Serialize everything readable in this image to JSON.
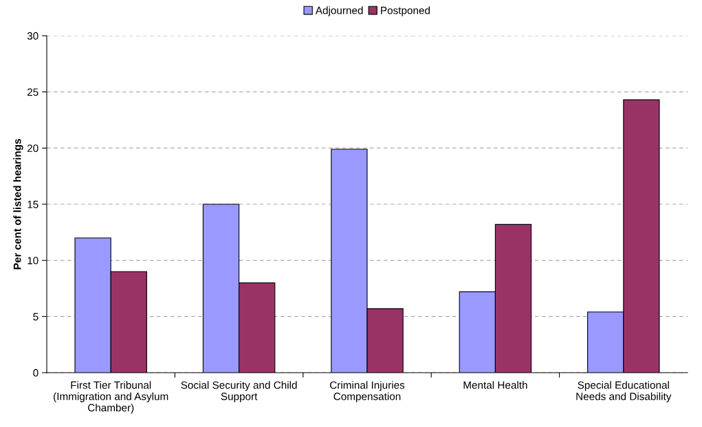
{
  "chart_data": {
    "type": "bar",
    "ylabel": "Per cent of listed hearings",
    "categories": [
      "First Tier Tribunal (Immigration and Asylum Chamber)",
      "Social Security and Child Support",
      "Criminal Injuries Compensation",
      "Mental Health",
      "Special Educational Needs and Disability"
    ],
    "series": [
      {
        "name": "Adjourned",
        "color": "#9999ff",
        "values": [
          12.0,
          15.0,
          19.9,
          7.2,
          5.4
        ]
      },
      {
        "name": "Postponed",
        "color": "#993366",
        "values": [
          9.0,
          8.0,
          5.7,
          13.2,
          24.3
        ]
      }
    ],
    "ylim": [
      0,
      30
    ],
    "yticks": [
      0,
      5,
      10,
      15,
      20,
      25,
      30
    ],
    "grid": "y",
    "legend": "top"
  }
}
